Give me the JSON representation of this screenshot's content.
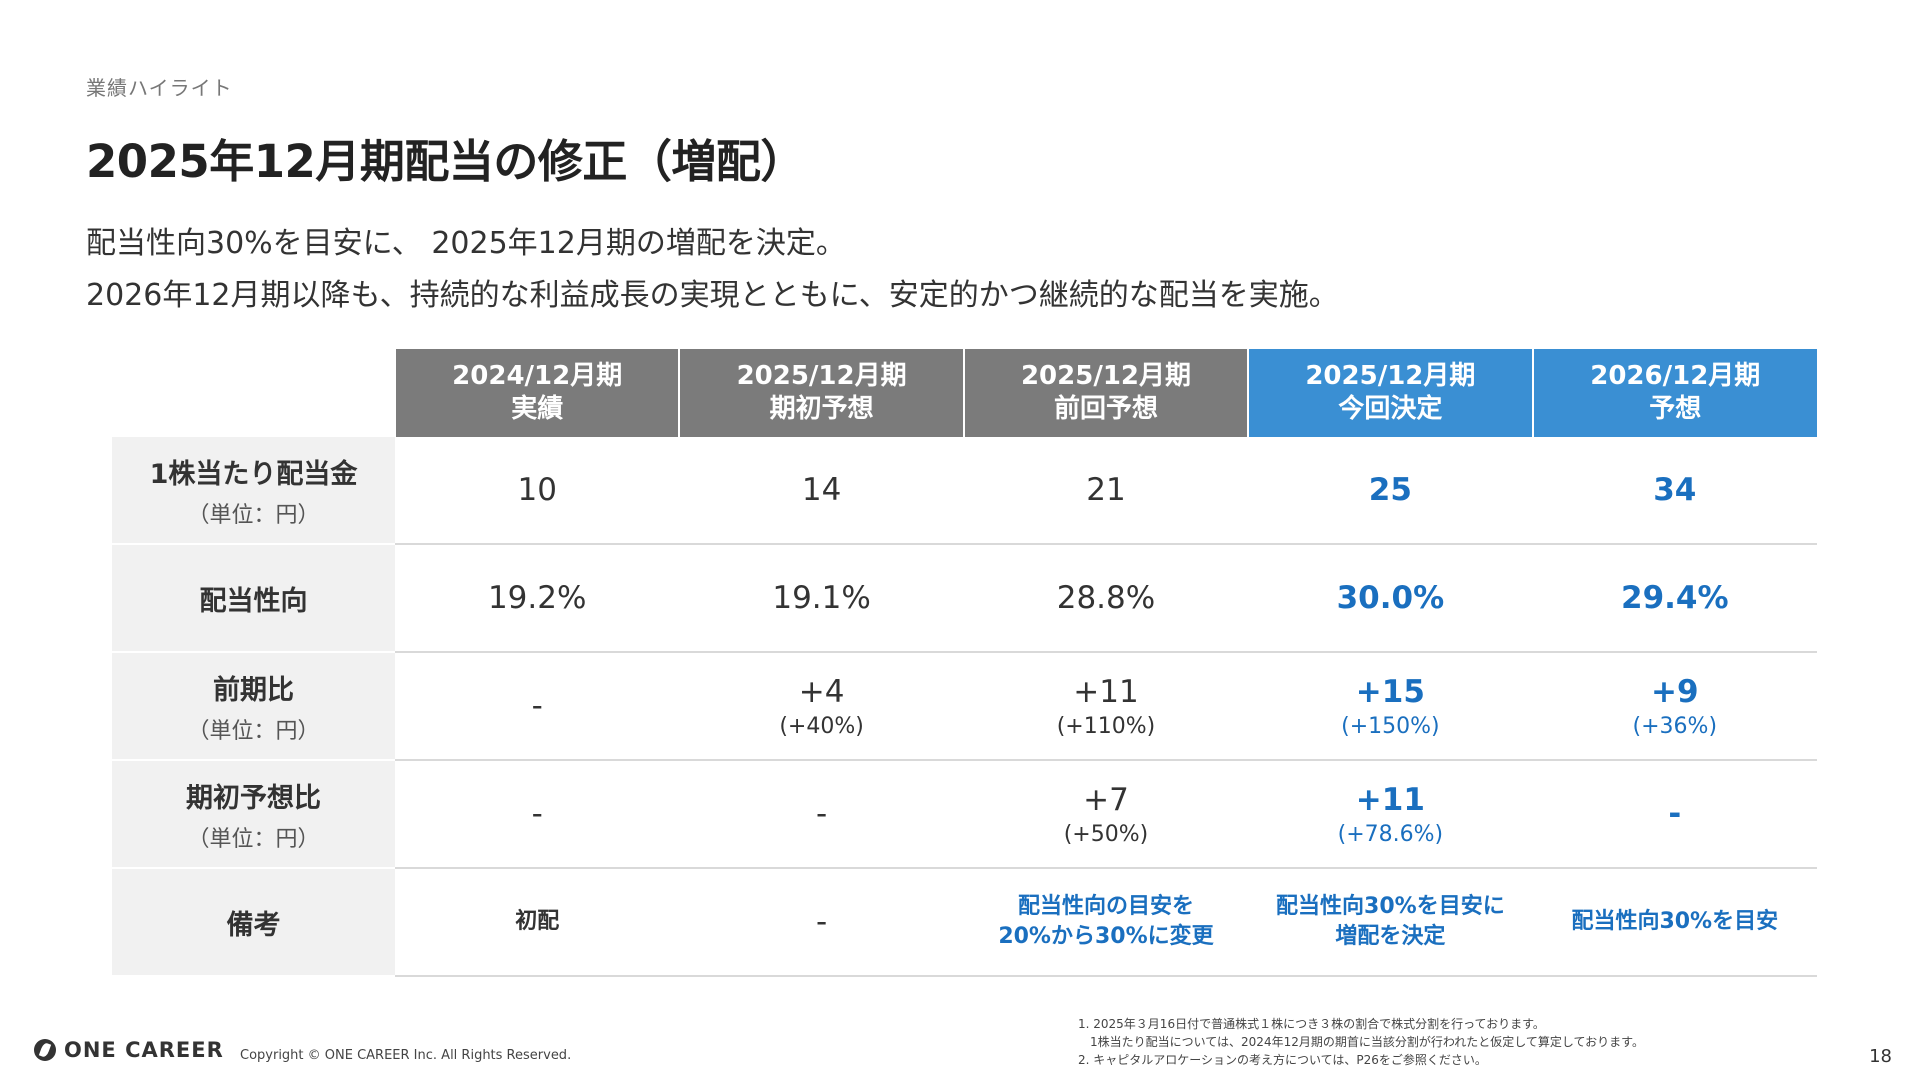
{
  "section_label": "業績ハイライト",
  "title": "2025年12月期配当の修正（増配）",
  "lead": [
    "配当性向30%を目安に、 2025年12月期の増配を決定。",
    "2026年12月期以降も、持続的な利益成長の実現とともに、安定的かつ継続的な配当を実施。"
  ],
  "table": {
    "columns": [
      {
        "line1": "2024/12月期",
        "line2": "実績",
        "style": "gray"
      },
      {
        "line1": "2025/12月期",
        "line2": "期初予想",
        "style": "gray"
      },
      {
        "line1": "2025/12月期",
        "line2": "前回予想",
        "style": "gray"
      },
      {
        "line1": "2025/12月期",
        "line2": "今回決定",
        "style": "blue"
      },
      {
        "line1": "2026/12月期",
        "line2": "予想",
        "style": "blue"
      }
    ],
    "rows": [
      {
        "label": "1株当たり配当金",
        "unit": "（単位：円）",
        "cells": [
          {
            "main": "10"
          },
          {
            "main": "14"
          },
          {
            "main": "21"
          },
          {
            "main": "25"
          },
          {
            "main": "34"
          }
        ]
      },
      {
        "label": "配当性向",
        "unit": "",
        "cells": [
          {
            "main": "19.2%"
          },
          {
            "main": "19.1%"
          },
          {
            "main": "28.8%"
          },
          {
            "main": "30.0%"
          },
          {
            "main": "29.4%"
          }
        ]
      },
      {
        "label": "前期比",
        "unit": "（単位：円）",
        "cells": [
          {
            "main": "-"
          },
          {
            "main": "+4",
            "sub": "(+40%)"
          },
          {
            "main": "+11",
            "sub": "(+110%)"
          },
          {
            "main": "+15",
            "sub": "(+150%)"
          },
          {
            "main": "+9",
            "sub": "(+36%)"
          }
        ]
      },
      {
        "label": "期初予想比",
        "unit": "（単位：円）",
        "cells": [
          {
            "main": "-"
          },
          {
            "main": "-"
          },
          {
            "main": "+7",
            "sub": "(+50%)"
          },
          {
            "main": "+11",
            "sub": "(+78.6%)"
          },
          {
            "main": "-"
          }
        ]
      },
      {
        "label": "備考",
        "unit": "",
        "notes": [
          {
            "line1": "初配",
            "line2": "",
            "accent": false
          },
          {
            "line1": "-",
            "line2": "",
            "accent": false
          },
          {
            "line1": "配当性向の目安を",
            "line2": "20%から30%に変更",
            "accent": true
          },
          {
            "line1": "配当性向30%を目安に",
            "line2": "増配を決定",
            "accent": true
          },
          {
            "line1": "配当性向30%を目安",
            "line2": "",
            "accent": true
          }
        ]
      }
    ]
  },
  "footer": {
    "logo": "ONE CAREER",
    "copyright": "Copyright © ONE CAREER Inc. All Rights Reserved.",
    "notes": [
      "1. 2025年３月16日付で普通株式１株につき３株の割合で株式分割を行っております。",
      "　1株当たり配当については、2024年12月期の期首に当該分割が行われたと仮定して算定しております。",
      "2. キャピタルアロケーションの考え方については、P26をご参照ください。"
    ],
    "page_number": "18"
  },
  "colors": {
    "header_gray": "#7b7b7b",
    "header_blue": "#3a8fd3",
    "accent_text": "#1a6fbf",
    "row_label_bg": "#f1f1f1"
  }
}
